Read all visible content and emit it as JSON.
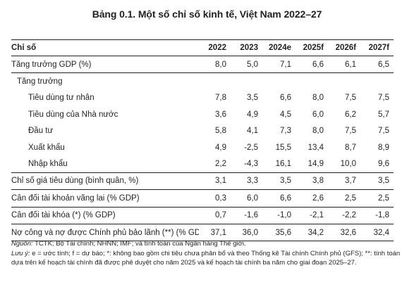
{
  "title": "Bảng 0.1. Một số chỉ số kinh tế, Việt Nam 2022–27",
  "table": {
    "header": {
      "name": "Chỉ số",
      "years": [
        "2022",
        "2023",
        "2024e",
        "2025f",
        "2026f",
        "2027f"
      ]
    },
    "rows": [
      {
        "name": "Tăng trưởng GDP (%)",
        "values": [
          "8,0",
          "5,0",
          "7,1",
          "6,6",
          "6,1",
          "6,5"
        ]
      },
      {
        "name": "Tăng trưởng",
        "values": [
          "",
          "",
          "",
          "",
          "",
          ""
        ]
      },
      {
        "name": "Tiêu dùng tư nhân",
        "values": [
          "7,8",
          "3,5",
          "6,6",
          "8,0",
          "7,5",
          "7,5"
        ]
      },
      {
        "name": "Tiêu dùng của Nhà nước",
        "values": [
          "3,6",
          "4,9",
          "4,5",
          "6,0",
          "6,2",
          "5,7"
        ]
      },
      {
        "name": "Đầu tư",
        "values": [
          "5,8",
          "4,1",
          "7,3",
          "8,0",
          "7,5",
          "7,5"
        ]
      },
      {
        "name": "Xuất khẩu",
        "values": [
          "4,9",
          "-2,5",
          "15,5",
          "13,4",
          "8,7",
          "8,9"
        ]
      },
      {
        "name": "Nhập khẩu",
        "values": [
          "2,2",
          "-4,3",
          "16,1",
          "14,9",
          "10,0",
          "9,6"
        ]
      },
      {
        "name": "Chỉ số giá tiêu dùng (bình quân, %)",
        "values": [
          "3,1",
          "3,3",
          "3,5",
          "3,8",
          "3,7",
          "3,5"
        ]
      },
      {
        "name": "Cân đối tài khoản vãng lai (% GDP)",
        "values": [
          "0,3",
          "6,0",
          "6,6",
          "2,6",
          "2,5",
          "2,5"
        ]
      },
      {
        "name": "Cân đối tài khóa (*) (% GDP)",
        "values": [
          "0,7",
          "-1,6",
          "-1,0",
          "-2,1",
          "-2,2",
          "-1,8"
        ]
      },
      {
        "name": "Nợ công và nợ được Chính phủ bảo lãnh (**) (% GDP)",
        "values": [
          "37,1",
          "36,0",
          "35,6",
          "34,2",
          "32,6",
          "32,4"
        ]
      }
    ]
  },
  "notes": {
    "source_label": "Nguồn:",
    "source_text": " TCTK; Bộ Tài chính; NHNN; IMF; và tính toán của Ngân hàng Thế giới.",
    "note_label": "Lưu ý:",
    "note_text": " e = ước tính; f = dự báo; *: không bao gồm chi tiêu chưa phân bổ và theo Thống kê Tài chính Chính phủ (GFS); **: tính toán dựa trên kế hoạch tài chính đã được phê duyệt cho năm 2025 và kế hoạch tài chính ba năm cho giai đoạn 2025–27."
  }
}
